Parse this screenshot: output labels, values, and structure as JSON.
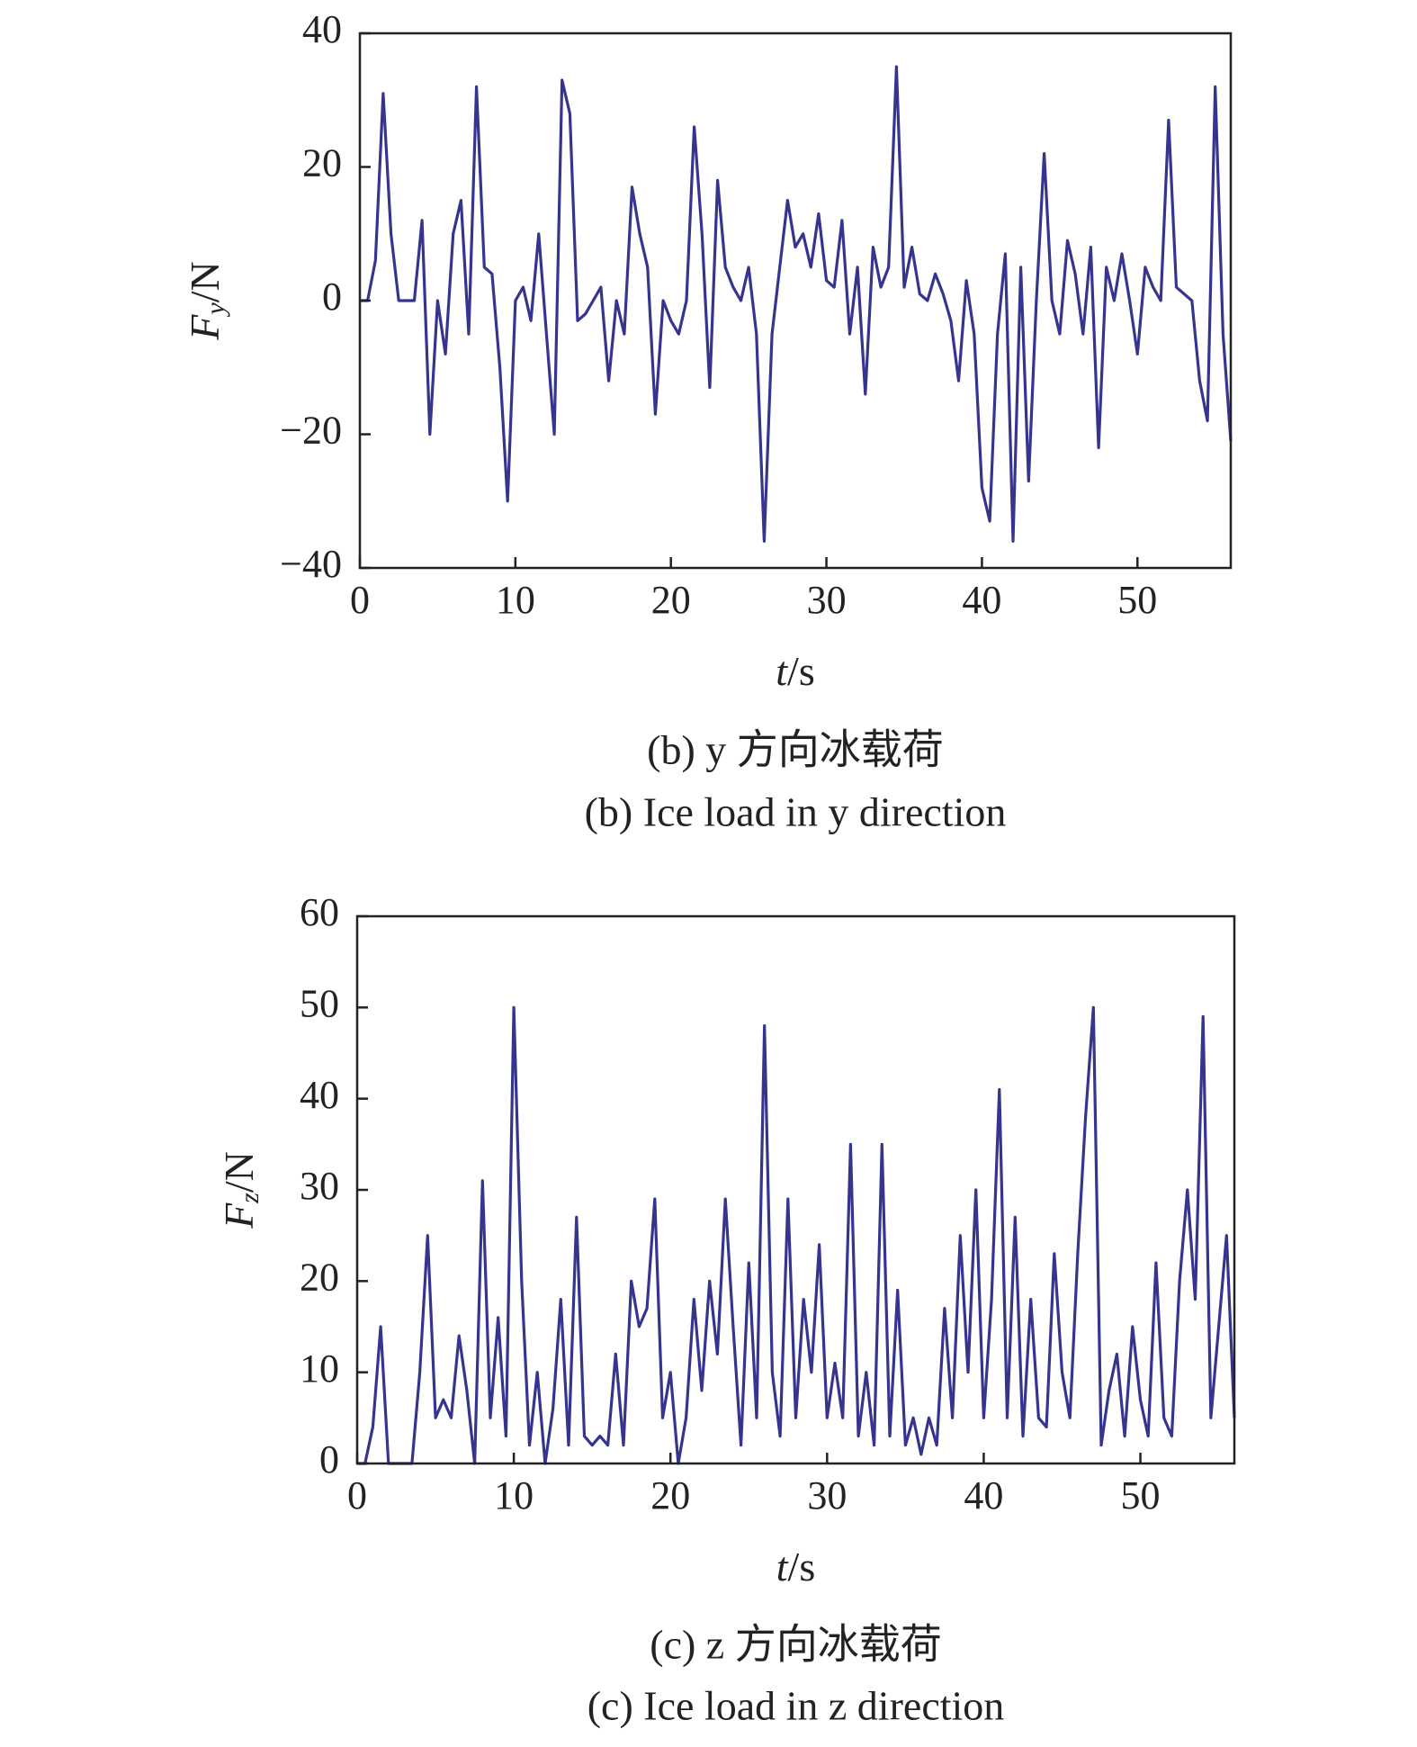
{
  "chart_data": [
    {
      "type": "line",
      "ylabel_symbol": "F",
      "ylabel_subscript": "y",
      "ylabel_unit": "/N",
      "xlabel_symbol": "t",
      "xlabel_unit": "/s",
      "caption": "(b) y 方向冰载荷",
      "caption_en": "(b) Ice load in y direction",
      "xlim": [
        0,
        56
      ],
      "xticks": [
        0,
        10,
        20,
        30,
        40,
        50
      ],
      "ylim": [
        -40,
        40
      ],
      "yticks": [
        {
          "value": -40,
          "label": "−40"
        },
        {
          "value": -20,
          "label": "−20"
        },
        0,
        20,
        40
      ],
      "x": [
        0,
        0.5,
        1,
        1.5,
        2,
        2.5,
        3,
        3.5,
        4,
        4.5,
        5,
        5.5,
        6,
        6.5,
        7,
        7.5,
        8,
        8.5,
        9,
        9.5,
        10,
        10.5,
        11,
        11.5,
        12,
        12.5,
        13,
        13.5,
        14,
        14.5,
        15,
        15.5,
        16,
        16.5,
        17,
        17.5,
        18,
        18.5,
        19,
        19.5,
        20,
        20.5,
        21,
        21.5,
        22,
        22.5,
        23,
        23.5,
        24,
        24.5,
        25,
        25.5,
        26,
        26.5,
        27,
        27.5,
        28,
        28.5,
        29,
        29.5,
        30,
        30.5,
        31,
        31.5,
        32,
        32.5,
        33,
        33.5,
        34,
        34.5,
        35,
        35.5,
        36,
        36.5,
        37,
        37.5,
        38,
        38.5,
        39,
        39.5,
        40,
        40.5,
        41,
        41.5,
        42,
        42.5,
        43,
        43.5,
        44,
        44.5,
        45,
        45.5,
        46,
        46.5,
        47,
        47.5,
        48,
        48.5,
        49,
        49.5,
        50,
        50.5,
        51,
        51.5,
        52,
        52.5,
        53,
        53.5,
        54,
        54.5,
        55,
        55.5,
        56
      ],
      "color": "#35358f",
      "values": [
        0,
        0,
        6,
        31,
        10,
        0,
        0,
        0,
        12,
        -20,
        0,
        -8,
        10,
        15,
        -5,
        32,
        5,
        4,
        -10,
        -30,
        0,
        2,
        -3,
        10,
        -5,
        -20,
        33,
        28,
        -3,
        -2,
        0,
        2,
        -12,
        0,
        -5,
        17,
        10,
        5,
        -17,
        0,
        -3,
        -5,
        0,
        26,
        10,
        -13,
        18,
        5,
        2,
        0,
        5,
        -5,
        -36,
        -5,
        5,
        15,
        8,
        10,
        5,
        13,
        3,
        2,
        12,
        -5,
        5,
        -14,
        8,
        2,
        5,
        35,
        2,
        8,
        1,
        0,
        4,
        1,
        -3,
        -12,
        3,
        -5,
        -28,
        -33,
        -5,
        7,
        -36,
        5,
        -27,
        0,
        22,
        0,
        -5,
        9,
        4,
        -5,
        8,
        -22,
        5,
        0,
        7,
        0,
        -8,
        5,
        2,
        0,
        27,
        2,
        1,
        0,
        -12,
        -18,
        32,
        -5,
        -21
      ]
    },
    {
      "type": "line",
      "ylabel_symbol": "F",
      "ylabel_subscript": "z",
      "ylabel_unit": "/N",
      "xlabel_symbol": "t",
      "xlabel_unit": "/s",
      "caption": "(c) z 方向冰载荷",
      "caption_en": "(c) Ice load in z direction",
      "xlim": [
        0,
        56
      ],
      "xticks": [
        0,
        10,
        20,
        30,
        40,
        50
      ],
      "ylim": [
        0,
        60
      ],
      "yticks": [
        0,
        10,
        20,
        30,
        40,
        50,
        60
      ],
      "x": [
        0,
        0.5,
        1,
        1.5,
        2,
        2.5,
        3,
        3.5,
        4,
        4.5,
        5,
        5.5,
        6,
        6.5,
        7,
        7.5,
        8,
        8.5,
        9,
        9.5,
        10,
        10.5,
        11,
        11.5,
        12,
        12.5,
        13,
        13.5,
        14,
        14.5,
        15,
        15.5,
        16,
        16.5,
        17,
        17.5,
        18,
        18.5,
        19,
        19.5,
        20,
        20.5,
        21,
        21.5,
        22,
        22.5,
        23,
        23.5,
        24,
        24.5,
        25,
        25.5,
        26,
        26.5,
        27,
        27.5,
        28,
        28.5,
        29,
        29.5,
        30,
        30.5,
        31,
        31.5,
        32,
        32.5,
        33,
        33.5,
        34,
        34.5,
        35,
        35.5,
        36,
        36.5,
        37,
        37.5,
        38,
        38.5,
        39,
        39.5,
        40,
        40.5,
        41,
        41.5,
        42,
        42.5,
        43,
        43.5,
        44,
        44.5,
        45,
        45.5,
        46,
        46.5,
        47,
        47.5,
        48,
        48.5,
        49,
        49.5,
        50,
        50.5,
        51,
        51.5,
        52,
        52.5,
        53,
        53.5,
        54,
        54.5,
        55,
        55.5,
        56
      ],
      "color": "#35358f",
      "values": [
        0,
        0,
        4,
        15,
        0,
        0,
        0,
        0,
        10,
        25,
        5,
        7,
        5,
        14,
        8,
        0,
        31,
        5,
        16,
        3,
        50,
        20,
        2,
        10,
        0,
        6,
        18,
        2,
        27,
        3,
        2,
        3,
        2,
        12,
        2,
        20,
        15,
        17,
        29,
        5,
        10,
        0,
        5,
        18,
        8,
        20,
        12,
        29,
        15,
        2,
        22,
        5,
        48,
        10,
        3,
        29,
        5,
        18,
        10,
        24,
        5,
        11,
        5,
        35,
        3,
        10,
        2,
        35,
        3,
        19,
        2,
        5,
        1,
        5,
        2,
        17,
        5,
        25,
        10,
        30,
        5,
        18,
        41,
        5,
        27,
        3,
        18,
        5,
        4,
        23,
        10,
        5,
        23,
        38,
        50,
        2,
        8,
        12,
        3,
        15,
        7,
        3,
        22,
        5,
        3,
        20,
        30,
        18,
        49,
        5,
        15,
        25,
        5
      ]
    }
  ]
}
